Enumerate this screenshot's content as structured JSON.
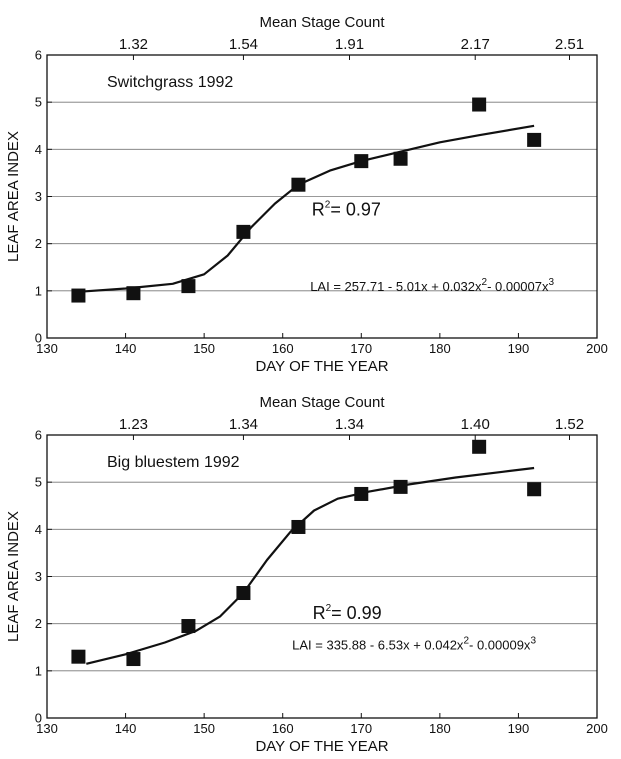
{
  "chart_data": [
    {
      "type": "scatter",
      "title": "Switchgrass 1992",
      "xlabel": "DAY OF THE YEAR",
      "ylabel": "LEAF AREA INDEX",
      "xlim": [
        130,
        200
      ],
      "ylim": [
        0,
        6
      ],
      "x_ticks": [
        130,
        140,
        150,
        160,
        170,
        180,
        190,
        200
      ],
      "y_ticks": [
        0,
        1,
        2,
        3,
        4,
        5,
        6
      ],
      "grid": "horizontal",
      "top_axis": {
        "label": "Mean Stage Count",
        "ticks": [
          {
            "x": 141,
            "label": "1.32"
          },
          {
            "x": 155,
            "label": "1.54"
          },
          {
            "x": 168.5,
            "label": "1.91"
          },
          {
            "x": 184.5,
            "label": "2.17"
          },
          {
            "x": 196.5,
            "label": "2.51"
          }
        ]
      },
      "points": [
        {
          "x": 134,
          "y": 0.9
        },
        {
          "x": 141,
          "y": 0.95
        },
        {
          "x": 148,
          "y": 1.1
        },
        {
          "x": 155,
          "y": 2.25
        },
        {
          "x": 162,
          "y": 3.25
        },
        {
          "x": 170,
          "y": 3.75
        },
        {
          "x": 175,
          "y": 3.8
        },
        {
          "x": 185,
          "y": 4.95
        },
        {
          "x": 192,
          "y": 4.2
        }
      ],
      "fit_curve": [
        {
          "x": 134,
          "y": 0.98
        },
        {
          "x": 140,
          "y": 1.05
        },
        {
          "x": 146,
          "y": 1.15
        },
        {
          "x": 150,
          "y": 1.35
        },
        {
          "x": 153,
          "y": 1.75
        },
        {
          "x": 156,
          "y": 2.35
        },
        {
          "x": 159,
          "y": 2.85
        },
        {
          "x": 162,
          "y": 3.25
        },
        {
          "x": 166,
          "y": 3.55
        },
        {
          "x": 170,
          "y": 3.75
        },
        {
          "x": 175,
          "y": 3.95
        },
        {
          "x": 180,
          "y": 4.15
        },
        {
          "x": 185,
          "y": 4.3
        },
        {
          "x": 192,
          "y": 4.5
        }
      ],
      "r2_text": {
        "pre": "R",
        "sup": "2",
        "post": "= 0.97",
        "x": 163.7,
        "y": 2.6
      },
      "equation": {
        "parts": [
          {
            "t": "LAI = 257.71 - 5.01x + 0.032x",
            "sup": false
          },
          {
            "t": "2",
            "sup": true
          },
          {
            "t": "- 0.00007x",
            "sup": false
          },
          {
            "t": "3",
            "sup": true
          }
        ],
        "x": 163.5,
        "y": 1.0
      }
    },
    {
      "type": "scatter",
      "title": "Big bluestem 1992",
      "xlabel": "DAY OF THE YEAR",
      "ylabel": "LEAF AREA INDEX",
      "xlim": [
        130,
        200
      ],
      "ylim": [
        0,
        6
      ],
      "x_ticks": [
        130,
        140,
        150,
        160,
        170,
        180,
        190,
        200
      ],
      "y_ticks": [
        0,
        1,
        2,
        3,
        4,
        5,
        6
      ],
      "grid": "horizontal",
      "top_axis": {
        "label": "Mean Stage Count",
        "ticks": [
          {
            "x": 141,
            "label": "1.23"
          },
          {
            "x": 155,
            "label": "1.34"
          },
          {
            "x": 168.5,
            "label": "1.34"
          },
          {
            "x": 184.5,
            "label": "1.40"
          },
          {
            "x": 196.5,
            "label": "1.52"
          }
        ]
      },
      "points": [
        {
          "x": 134,
          "y": 1.3
        },
        {
          "x": 141,
          "y": 1.25
        },
        {
          "x": 148,
          "y": 1.95
        },
        {
          "x": 155,
          "y": 2.65
        },
        {
          "x": 162,
          "y": 4.05
        },
        {
          "x": 170,
          "y": 4.75
        },
        {
          "x": 175,
          "y": 4.9
        },
        {
          "x": 185,
          "y": 5.75
        },
        {
          "x": 192,
          "y": 4.85
        }
      ],
      "fit_curve": [
        {
          "x": 135,
          "y": 1.15
        },
        {
          "x": 140,
          "y": 1.35
        },
        {
          "x": 145,
          "y": 1.6
        },
        {
          "x": 149,
          "y": 1.85
        },
        {
          "x": 152,
          "y": 2.15
        },
        {
          "x": 155,
          "y": 2.65
        },
        {
          "x": 158,
          "y": 3.35
        },
        {
          "x": 161,
          "y": 3.95
        },
        {
          "x": 164,
          "y": 4.4
        },
        {
          "x": 167,
          "y": 4.65
        },
        {
          "x": 171,
          "y": 4.8
        },
        {
          "x": 176,
          "y": 4.95
        },
        {
          "x": 182,
          "y": 5.1
        },
        {
          "x": 188,
          "y": 5.22
        },
        {
          "x": 192,
          "y": 5.3
        }
      ],
      "r2_text": {
        "pre": "R",
        "sup": "2",
        "post": "= 0.99",
        "x": 163.8,
        "y": 2.1
      },
      "equation": {
        "parts": [
          {
            "t": "LAI = 335.88 - 6.53x + 0.042x",
            "sup": false
          },
          {
            "t": "2",
            "sup": true
          },
          {
            "t": "- 0.00009x",
            "sup": false
          },
          {
            "t": "3",
            "sup": true
          }
        ],
        "x": 161.2,
        "y": 1.45
      }
    }
  ]
}
